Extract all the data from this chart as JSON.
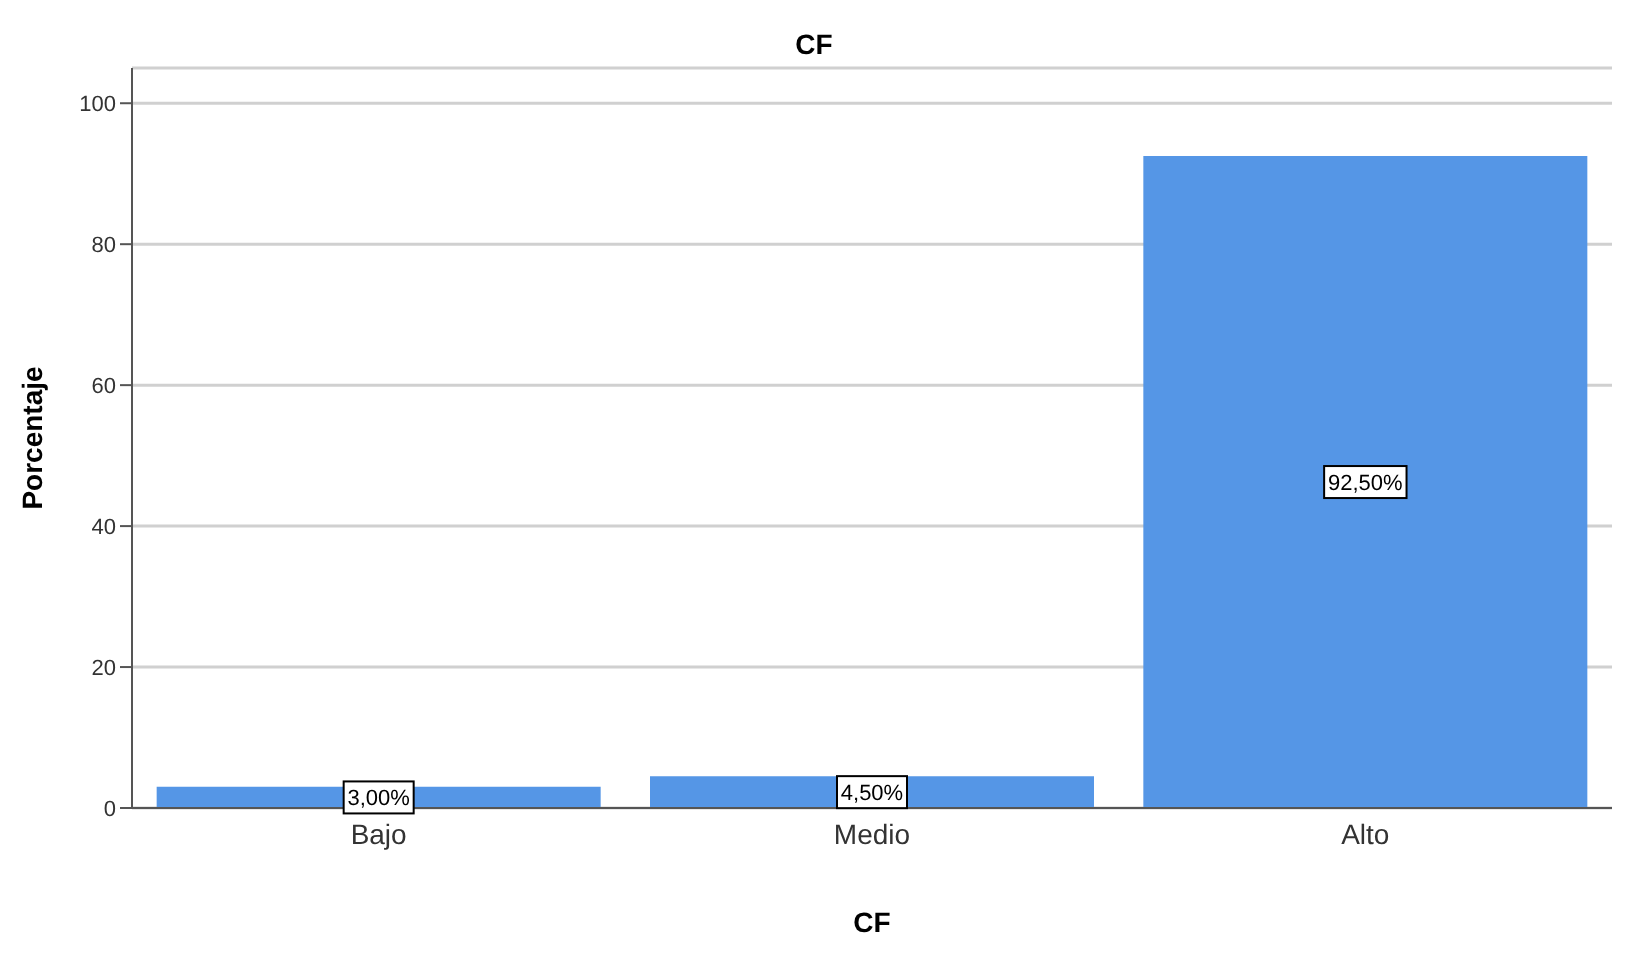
{
  "chart_data": {
    "type": "bar",
    "title": "CF",
    "xlabel": "CF",
    "ylabel": "Porcentaje",
    "categories": [
      "Bajo",
      "Medio",
      "Alto"
    ],
    "values": [
      3.0,
      4.5,
      92.5
    ],
    "color": "#5596e6",
    "value_labels": [
      "3,00%",
      "4,50%",
      "92,50%"
    ],
    "ylim": [
      0,
      105
    ],
    "yticks": [
      0,
      20,
      40,
      60,
      80,
      100
    ],
    "grid": "y"
  }
}
